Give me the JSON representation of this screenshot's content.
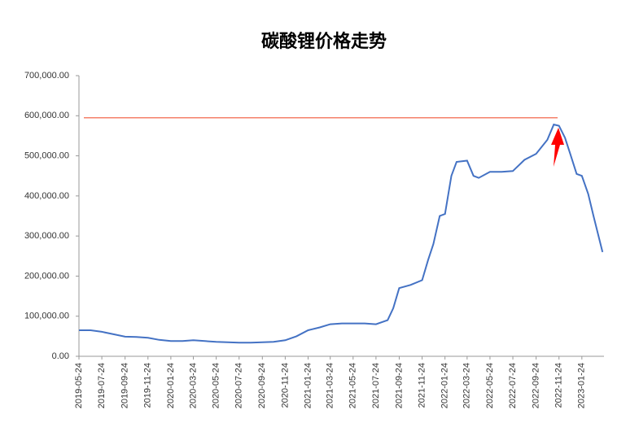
{
  "chart_data": {
    "type": "line",
    "title": "碳酸锂价格走势",
    "x": [
      "2019-05-24",
      "2019-06-24",
      "2019-07-24",
      "2019-08-24",
      "2019-09-24",
      "2019-10-24",
      "2019-11-24",
      "2019-12-24",
      "2020-01-24",
      "2020-02-24",
      "2020-03-24",
      "2020-04-24",
      "2020-05-24",
      "2020-06-24",
      "2020-07-24",
      "2020-08-24",
      "2020-09-24",
      "2020-10-24",
      "2020-11-24",
      "2020-12-24",
      "2021-01-24",
      "2021-02-24",
      "2021-03-24",
      "2021-04-24",
      "2021-05-24",
      "2021-06-24",
      "2021-07-24",
      "2021-08-24",
      "2021-09-08",
      "2021-09-24",
      "2021-10-24",
      "2021-11-24",
      "2021-12-10",
      "2021-12-24",
      "2022-01-10",
      "2022-01-24",
      "2022-02-10",
      "2022-02-24",
      "2022-03-24",
      "2022-04-10",
      "2022-04-24",
      "2022-05-24",
      "2022-06-24",
      "2022-07-24",
      "2022-08-24",
      "2022-09-24",
      "2022-10-24",
      "2022-11-10",
      "2022-11-24",
      "2022-12-10",
      "2022-12-24",
      "2023-01-10",
      "2023-01-24",
      "2023-02-10",
      "2023-02-24",
      "2023-03-20"
    ],
    "series": [
      {
        "color": "#4472c4",
        "values": [
          65000,
          65000,
          61000,
          55000,
          49000,
          48000,
          46000,
          41000,
          38000,
          38000,
          40000,
          38000,
          36000,
          35000,
          34000,
          34000,
          35000,
          36000,
          40000,
          50000,
          65000,
          72000,
          80000,
          82000,
          82000,
          82000,
          80000,
          90000,
          120000,
          170000,
          178000,
          190000,
          240000,
          280000,
          350000,
          355000,
          450000,
          485000,
          488000,
          450000,
          445000,
          460000,
          460000,
          462000,
          490000,
          505000,
          540000,
          578000,
          575000,
          545000,
          505000,
          455000,
          450000,
          405000,
          350000,
          260000
        ]
      }
    ],
    "xlim": [
      "2019-05-24",
      "2023-03-24"
    ],
    "xticks": [
      "2019-05-24",
      "2019-07-24",
      "2019-09-24",
      "2019-11-24",
      "2020-01-24",
      "2020-03-24",
      "2020-05-24",
      "2020-07-24",
      "2020-09-24",
      "2020-11-24",
      "2021-01-24",
      "2021-03-24",
      "2021-05-24",
      "2021-07-24",
      "2021-09-24",
      "2021-11-24",
      "2022-01-24",
      "2022-03-24",
      "2022-05-24",
      "2022-07-24",
      "2022-09-24",
      "2022-11-24",
      "2023-01-24"
    ],
    "ylim": [
      0,
      700000
    ],
    "yticks": [
      {
        "value": 0,
        "label": "0.00"
      },
      {
        "value": 100000,
        "label": "100,000.00"
      },
      {
        "value": 200000,
        "label": "200,000.00"
      },
      {
        "value": 300000,
        "label": "300,000.00"
      },
      {
        "value": 400000,
        "label": "400,000.00"
      },
      {
        "value": 500000,
        "label": "500,000.00"
      },
      {
        "value": 600000,
        "label": "600,000.00"
      },
      {
        "value": 700000,
        "label": "700,000.00"
      }
    ],
    "reference_line": {
      "value": 595000,
      "color": "#f4806a"
    }
  }
}
